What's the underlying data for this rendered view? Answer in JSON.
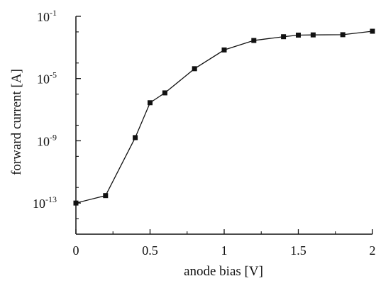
{
  "chart_data": {
    "type": "line",
    "xlabel": "anode bias [V]",
    "ylabel": "forward current [A]",
    "xlim": [
      0,
      2
    ],
    "ylim_log10": [
      -15,
      -1
    ],
    "y_scale": "log",
    "grid": false,
    "x_ticks": [
      {
        "value": 0,
        "label": "0"
      },
      {
        "value": 0.5,
        "label": "0.5"
      },
      {
        "value": 1,
        "label": "1"
      },
      {
        "value": 1.5,
        "label": "1.5"
      },
      {
        "value": 2,
        "label": "2"
      }
    ],
    "y_ticks": [
      {
        "exponent": -13,
        "base": "10",
        "exp_label": "-13"
      },
      {
        "exponent": -9,
        "base": "10",
        "exp_label": "-9"
      },
      {
        "exponent": -5,
        "base": "10",
        "exp_label": "-5"
      },
      {
        "exponent": -1,
        "base": "10",
        "exp_label": "-1"
      }
    ],
    "series": [
      {
        "color": "#111111",
        "x": [
          0,
          0.2,
          0.4,
          0.5,
          0.6,
          0.8,
          1.0,
          1.2,
          1.4,
          1.5,
          1.6,
          1.8,
          2.0
        ],
        "y": [
          1e-13,
          3e-13,
          1.6e-09,
          2.8e-07,
          1.2e-06,
          4.3e-05,
          0.00069,
          0.0028,
          0.0049,
          0.0062,
          0.0064,
          0.0066,
          0.011
        ]
      }
    ]
  }
}
